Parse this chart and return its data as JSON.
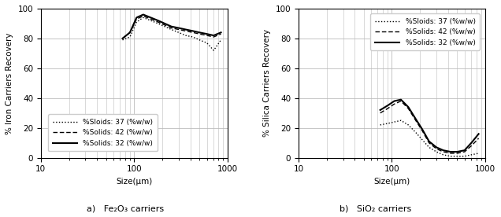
{
  "fe_x": [
    75,
    90,
    106,
    125,
    150,
    180,
    212,
    250,
    300,
    355,
    425,
    500,
    600,
    710,
    850
  ],
  "fe_dotted": [
    79,
    81,
    91,
    94,
    92,
    90,
    88,
    86,
    84,
    82,
    81,
    79,
    77,
    72,
    79
  ],
  "fe_dashed": [
    80,
    84,
    93,
    95,
    93,
    91,
    89,
    87,
    86,
    85,
    84,
    83,
    82,
    81,
    83
  ],
  "fe_solid": [
    80,
    84,
    94,
    96,
    94,
    92,
    90,
    88,
    87,
    86,
    85,
    84,
    83,
    82,
    84
  ],
  "si_x": [
    75,
    90,
    106,
    125,
    150,
    180,
    212,
    250,
    300,
    355,
    425,
    500,
    600,
    710,
    850
  ],
  "si_dotted": [
    22,
    23,
    24,
    25,
    22,
    17,
    12,
    7,
    4,
    2,
    1,
    1,
    1,
    2,
    3
  ],
  "si_dashed": [
    30,
    33,
    36,
    38,
    33,
    25,
    18,
    10,
    6,
    4,
    3,
    3,
    4,
    8,
    13
  ],
  "si_solid": [
    32,
    35,
    38,
    39,
    34,
    26,
    19,
    11,
    7,
    5,
    4,
    4,
    5,
    10,
    16
  ],
  "fe_ylabel": "% Iron Carriers Recovery",
  "si_ylabel": "% Silica Carriers Recovery",
  "xlabel": "Size(μm)",
  "fe_sublabel": "a)   Fe₂O₃ carriers",
  "si_sublabel": "b)   SiO₂ carriers",
  "legend_dotted": "%Sloids: 37 (%w/w)",
  "legend_dashed": "%Solids: 42 (%w/w)",
  "legend_solid": "%Solids: 32 (%w/w)",
  "ylim": [
    0,
    100
  ],
  "xlim": [
    10,
    1000
  ],
  "color": "#000000",
  "background": "#ffffff",
  "grid_color": "#bbbbbb",
  "fontsize": 7.5,
  "legend_fontsize": 6.5
}
